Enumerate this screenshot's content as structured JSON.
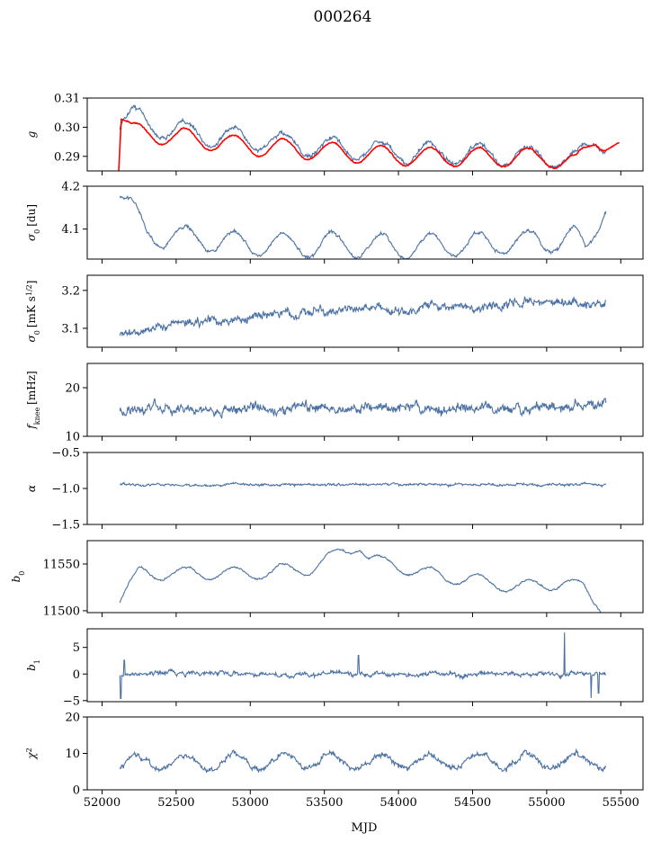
{
  "title": "000264",
  "xlabel": "MJD",
  "x_ticks": [
    52000,
    52500,
    53000,
    53500,
    54000,
    54500,
    55000,
    55500
  ],
  "colors": {
    "series": "#4c72a4",
    "model": "#ff0000",
    "axes": "#000000"
  },
  "chart_data": [
    {
      "type": "line",
      "ylabel_sym": "g",
      "ylabel_sub": "",
      "ylabel_sup": "",
      "ylabel_unit": "",
      "xlim": [
        51900,
        55650
      ],
      "ylim": [
        0.285,
        0.31
      ],
      "y_ticks": [
        "0.29",
        "0.30",
        "0.31"
      ],
      "y_tick_values": [
        0.29,
        0.3,
        0.31
      ],
      "x_range": [
        52120,
        55400
      ],
      "series": [
        {
          "kind": "data",
          "baseline": 0.2945,
          "amp": 0.0034,
          "trend": [
            [
              52120,
              0.3015
            ],
            [
              52200,
              0.3035
            ],
            [
              52400,
              0.2995
            ],
            [
              53000,
              0.2955
            ],
            [
              54000,
              0.291
            ],
            [
              55000,
              0.29
            ],
            [
              55200,
              0.2885
            ],
            [
              55320,
              0.2965
            ],
            [
              55400,
              0.294
            ]
          ],
          "noise": 0.0008
        },
        {
          "kind": "model",
          "baseline": 0.2935,
          "amp": 0.0032,
          "trend": [
            [
              52110,
              0.285
            ],
            [
              52130,
              0.304
            ],
            [
              52200,
              0.2985
            ],
            [
              53000,
              0.2935
            ],
            [
              54000,
              0.29
            ],
            [
              55000,
              0.2895
            ],
            [
              55200,
              0.2875
            ],
            [
              55330,
              0.2965
            ],
            [
              55490,
              0.2925
            ]
          ],
          "noise": 0.0002
        }
      ]
    },
    {
      "type": "line",
      "ylabel_sym": "σ",
      "ylabel_sub": "0",
      "ylabel_sup": "",
      "ylabel_unit": "[du]",
      "xlim": [
        51900,
        55650
      ],
      "ylim": [
        4.03,
        4.2
      ],
      "y_ticks": [
        "4.1",
        "4.2"
      ],
      "y_tick_values": [
        4.1,
        4.2
      ],
      "x_range": [
        52120,
        55400
      ],
      "series": [
        {
          "kind": "data",
          "baseline": 4.07,
          "amp": 0.028,
          "trend": [
            [
              52120,
              4.19
            ],
            [
              52300,
              4.09
            ],
            [
              53000,
              4.065
            ],
            [
              54000,
              4.06
            ],
            [
              55000,
              4.07
            ],
            [
              55180,
              4.085
            ],
            [
              55260,
              4.045
            ],
            [
              55400,
              4.165
            ]
          ],
          "noise": 0.004
        }
      ]
    },
    {
      "type": "line",
      "ylabel_sym": "σ",
      "ylabel_sub": "0",
      "ylabel_sup": "",
      "ylabel_unit": "[mK s",
      "ylabel_unit_sup": "1/2",
      "ylabel_unit_end": "]",
      "xlim": [
        51900,
        55650
      ],
      "ylim": [
        3.05,
        3.24
      ],
      "y_ticks": [
        "3.1",
        "3.2"
      ],
      "y_tick_values": [
        3.1,
        3.2
      ],
      "x_range": [
        52120,
        55400
      ],
      "series": [
        {
          "kind": "data",
          "baseline": 3.1,
          "amp": 0.0,
          "trend": [
            [
              52120,
              3.09
            ],
            [
              52500,
              3.11
            ],
            [
              53000,
              3.13
            ],
            [
              53500,
              3.145
            ],
            [
              54000,
              3.15
            ],
            [
              54500,
              3.16
            ],
            [
              55000,
              3.17
            ],
            [
              55400,
              3.17
            ]
          ],
          "noise": 0.012
        }
      ]
    },
    {
      "type": "line",
      "ylabel_sym": "f",
      "ylabel_sub": "knee",
      "ylabel_sup": "",
      "ylabel_unit": "[mHz]",
      "xlim": [
        51900,
        55650
      ],
      "ylim": [
        10,
        25
      ],
      "y_ticks": [
        "10",
        "20"
      ],
      "y_tick_values": [
        10,
        20
      ],
      "x_range": [
        52120,
        55400
      ],
      "series": [
        {
          "kind": "data",
          "baseline": 15.7,
          "amp": 0.0,
          "trend": [
            [
              52120,
              15.6
            ],
            [
              55400,
              16.0
            ]
          ],
          "noise": 1.1
        }
      ]
    },
    {
      "type": "line",
      "ylabel_sym": "α",
      "ylabel_sub": "",
      "ylabel_sup": "",
      "ylabel_unit": "",
      "xlim": [
        51900,
        55650
      ],
      "ylim": [
        -1.5,
        -0.5
      ],
      "y_ticks": [
        "−1.5",
        "−1.0",
        "−0.5"
      ],
      "y_tick_values": [
        -1.5,
        -1.0,
        -0.5
      ],
      "x_range": [
        52120,
        55400
      ],
      "series": [
        {
          "kind": "data",
          "baseline": -0.95,
          "amp": 0.0,
          "trend": [
            [
              52120,
              -0.95
            ],
            [
              55400,
              -0.94
            ]
          ],
          "noise": 0.018
        }
      ]
    },
    {
      "type": "line",
      "ylabel_sym": "b",
      "ylabel_sub": "0",
      "ylabel_sup": "",
      "ylabel_unit": "",
      "xlim": [
        51900,
        55650
      ],
      "ylim": [
        11498,
        11575
      ],
      "y_ticks": [
        "11500",
        "11550"
      ],
      "y_tick_values": [
        11500,
        11550
      ],
      "x_range": [
        52120,
        55400
      ],
      "series": [
        {
          "kind": "data",
          "baseline": 11540,
          "amp": 7,
          "trend": [
            [
              52120,
              11512
            ],
            [
              52250,
              11540
            ],
            [
              52600,
              11540
            ],
            [
              53000,
              11540
            ],
            [
              53400,
              11545
            ],
            [
              53740,
              11572
            ],
            [
              53800,
              11555
            ],
            [
              54200,
              11540
            ],
            [
              54800,
              11525
            ],
            [
              55100,
              11530
            ],
            [
              55250,
              11525
            ],
            [
              55380,
              11502
            ],
            [
              55400,
              11504
            ]
          ],
          "noise": 1.0
        }
      ]
    },
    {
      "type": "line",
      "ylabel_sym": "b",
      "ylabel_sub": "1",
      "ylabel_sup": "",
      "ylabel_unit": "",
      "xlim": [
        51900,
        55650
      ],
      "ylim": [
        -5.2,
        8.5
      ],
      "y_ticks": [
        "−5",
        "0",
        "5"
      ],
      "y_tick_values": [
        -5,
        0,
        5
      ],
      "x_range": [
        52120,
        55400
      ],
      "series": [
        {
          "kind": "data",
          "baseline": 0.0,
          "amp": 0.0,
          "trend": [
            [
              52120,
              0
            ],
            [
              55400,
              0
            ]
          ],
          "noise": 0.45
        }
      ],
      "spikes": [
        [
          52125,
          -4.6
        ],
        [
          52150,
          2.6
        ],
        [
          53730,
          3.5
        ],
        [
          55120,
          7.8
        ],
        [
          55300,
          -4.5
        ],
        [
          55350,
          -3.6
        ]
      ]
    },
    {
      "type": "line",
      "ylabel_sym": "χ",
      "ylabel_sub": "",
      "ylabel_sup": "2",
      "ylabel_unit": "",
      "xlim": [
        51900,
        55650
      ],
      "ylim": [
        0,
        20
      ],
      "y_ticks": [
        "0",
        "10",
        "20"
      ],
      "y_tick_values": [
        0,
        10,
        20
      ],
      "x_range": [
        52120,
        55400
      ],
      "series": [
        {
          "kind": "data",
          "baseline": 8.0,
          "amp": 2.0,
          "trend": [
            [
              52120,
              7.5
            ],
            [
              55400,
              8.0
            ]
          ],
          "noise": 0.8
        }
      ]
    }
  ]
}
